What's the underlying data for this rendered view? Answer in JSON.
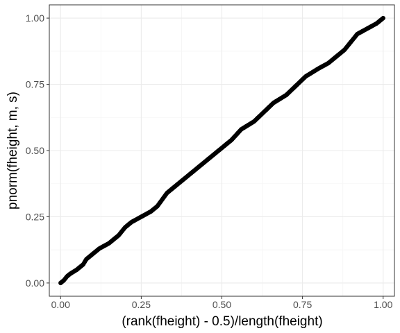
{
  "chart_data": {
    "type": "scatter",
    "xlabel": "(rank(fheight) - 0.5)/length(fheight)",
    "ylabel": "pnorm(fheight, m, s)",
    "xlim": [
      -0.035,
      1.035
    ],
    "ylim": [
      -0.05,
      1.05
    ],
    "x_ticks": [
      0.0,
      0.25,
      0.5,
      0.75,
      1.0
    ],
    "y_ticks": [
      0.0,
      0.25,
      0.5,
      0.75,
      1.0
    ],
    "x_tick_labels": [
      "0.00",
      "0.25",
      "0.50",
      "0.75",
      "1.00"
    ],
    "y_tick_labels": [
      "0.00",
      "0.25",
      "0.50",
      "0.75",
      "1.00"
    ],
    "minor_gridlines": true,
    "grid": true,
    "theme": "bw",
    "colors": {
      "points": "#000000",
      "panel_border": "#333333",
      "major_grid": "#ebebeb",
      "minor_grid": "#f5f5f5",
      "tick_label": "#4d4d4d"
    },
    "series": [
      {
        "x": [
          0.0,
          0.01,
          0.02,
          0.03,
          0.05,
          0.07,
          0.08,
          0.1,
          0.12,
          0.15,
          0.18,
          0.2,
          0.22,
          0.25,
          0.28,
          0.3,
          0.33,
          0.36,
          0.4,
          0.43,
          0.46,
          0.5,
          0.53,
          0.56,
          0.6,
          0.63,
          0.66,
          0.7,
          0.73,
          0.76,
          0.8,
          0.83,
          0.86,
          0.88,
          0.9,
          0.92,
          0.95,
          0.98,
          1.0
        ],
        "y": [
          0.0,
          0.01,
          0.025,
          0.035,
          0.05,
          0.07,
          0.09,
          0.11,
          0.13,
          0.15,
          0.18,
          0.21,
          0.23,
          0.25,
          0.27,
          0.29,
          0.34,
          0.37,
          0.41,
          0.44,
          0.47,
          0.51,
          0.54,
          0.58,
          0.61,
          0.645,
          0.68,
          0.71,
          0.745,
          0.78,
          0.81,
          0.83,
          0.86,
          0.88,
          0.91,
          0.94,
          0.96,
          0.98,
          1.0
        ]
      }
    ]
  }
}
